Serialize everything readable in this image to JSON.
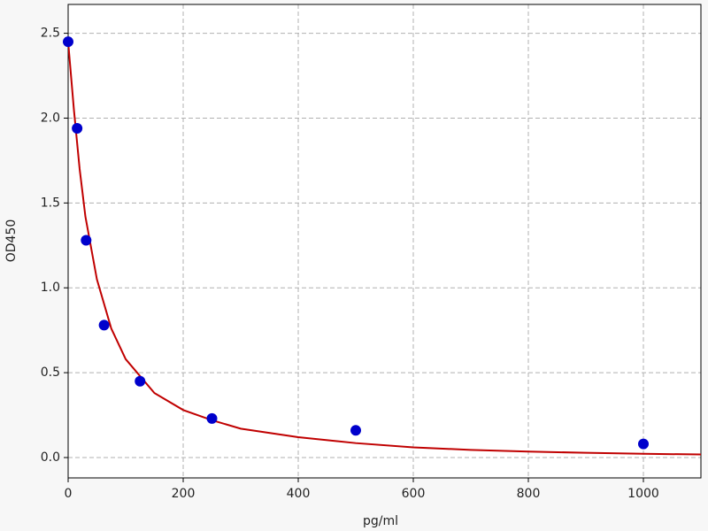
{
  "chart_data": {
    "type": "scatter",
    "xlabel": "pg/ml",
    "ylabel": "OD450",
    "xlim": [
      0,
      1100
    ],
    "ylim": [
      -0.12,
      2.67
    ],
    "xticks": [
      0,
      200,
      400,
      600,
      800,
      1000
    ],
    "yticks": [
      {
        "value": 0,
        "label": "0.0"
      },
      0.5,
      {
        "value": 1,
        "label": "1.0"
      },
      1.5,
      {
        "value": 2,
        "label": "2.0"
      },
      2.5
    ],
    "grid": true,
    "series": [
      {
        "mode": "markers",
        "color": "#0000cc",
        "x": [
          0,
          15.6,
          31.25,
          62.5,
          125,
          250,
          500,
          1000
        ],
        "values": [
          2.45,
          1.94,
          1.28,
          0.78,
          0.45,
          0.23,
          0.16,
          0.08
        ]
      },
      {
        "mode": "line",
        "color": "#c00000",
        "x": [
          0,
          10,
          20,
          30,
          50,
          75,
          100,
          150,
          200,
          250,
          300,
          400,
          500,
          600,
          700,
          800,
          900,
          1000,
          1100
        ],
        "values": [
          2.45,
          2.05,
          1.7,
          1.42,
          1.05,
          0.76,
          0.58,
          0.38,
          0.28,
          0.22,
          0.17,
          0.12,
          0.085,
          0.06,
          0.045,
          0.035,
          0.028,
          0.022,
          0.018
        ]
      }
    ]
  }
}
